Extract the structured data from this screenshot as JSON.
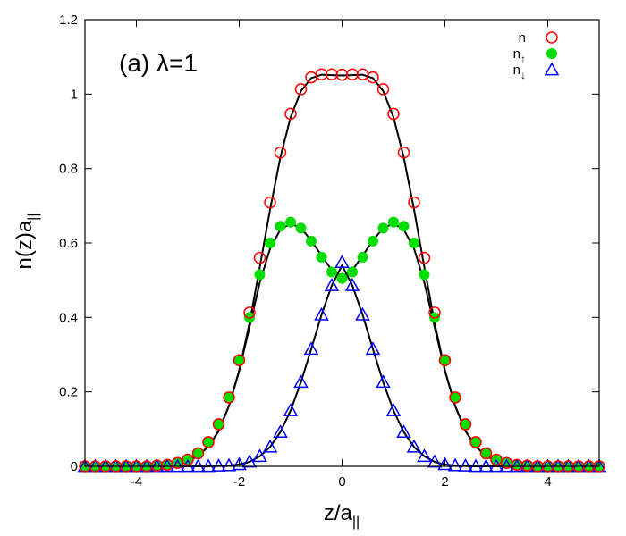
{
  "chart_data": {
    "type": "scatter",
    "panel_label": "(a) λ=1",
    "xlabel_base": "z/a",
    "xlabel_sub": "||",
    "ylabel_base": "n(z)a",
    "ylabel_sub": "||",
    "xlim": [
      -5,
      5
    ],
    "ylim": [
      0,
      1.2
    ],
    "x_ticks": [
      -4,
      -2,
      0,
      2,
      4
    ],
    "x_tick_labels": [
      "-4",
      "-2",
      "0",
      "2",
      "4"
    ],
    "y_ticks": [
      0,
      0.2,
      0.4,
      0.6,
      0.8,
      1,
      1.2
    ],
    "y_tick_labels": [
      "0",
      "0.2",
      "0.4",
      "0.6",
      "0.8",
      "1",
      "1.2"
    ],
    "legend_position": "top-right",
    "colors": {
      "n": "#ff0000",
      "n_up": "#00dd00",
      "n_down": "#0000ff",
      "fit": "#000000"
    },
    "series": [
      {
        "name": "n",
        "legend_base": "n",
        "legend_sub": "",
        "marker": "open-circle",
        "color": "#ff0000",
        "x": [
          -5.0,
          -4.8,
          -4.6,
          -4.4,
          -4.2,
          -4.0,
          -3.8,
          -3.6,
          -3.4,
          -3.2,
          -3.0,
          -2.8,
          -2.6,
          -2.4,
          -2.2,
          -2.0,
          -1.8,
          -1.6,
          -1.4,
          -1.2,
          -1.0,
          -0.8,
          -0.6,
          -0.4,
          -0.2,
          0.0,
          0.2,
          0.4,
          0.6,
          0.8,
          1.0,
          1.2,
          1.4,
          1.6,
          1.8,
          2.0,
          2.2,
          2.4,
          2.6,
          2.8,
          3.0,
          3.2,
          3.4,
          3.6,
          3.8,
          4.0,
          4.2,
          4.4,
          4.6,
          4.8,
          5.0
        ],
        "y": [
          0.0,
          0.0,
          0.0,
          0.0,
          0.0,
          0.0,
          0.0,
          0.002,
          0.004,
          0.009,
          0.018,
          0.035,
          0.065,
          0.113,
          0.185,
          0.285,
          0.413,
          0.56,
          0.709,
          0.843,
          0.947,
          1.013,
          1.045,
          1.053,
          1.053,
          1.052,
          1.053,
          1.053,
          1.045,
          1.013,
          0.947,
          0.843,
          0.709,
          0.56,
          0.413,
          0.285,
          0.185,
          0.113,
          0.065,
          0.035,
          0.018,
          0.009,
          0.004,
          0.002,
          0.0,
          0.0,
          0.0,
          0.0,
          0.0,
          0.0,
          0.0
        ]
      },
      {
        "name": "n↑",
        "legend_base": "n",
        "legend_sub": "↑",
        "marker": "filled-circle",
        "color": "#00dd00",
        "x": [
          -5.0,
          -4.8,
          -4.6,
          -4.4,
          -4.2,
          -4.0,
          -3.8,
          -3.6,
          -3.4,
          -3.2,
          -3.0,
          -2.8,
          -2.6,
          -2.4,
          -2.2,
          -2.0,
          -1.8,
          -1.6,
          -1.4,
          -1.2,
          -1.0,
          -0.8,
          -0.6,
          -0.4,
          -0.2,
          0.0,
          0.2,
          0.4,
          0.6,
          0.8,
          1.0,
          1.2,
          1.4,
          1.6,
          1.8,
          2.0,
          2.2,
          2.4,
          2.6,
          2.8,
          3.0,
          3.2,
          3.4,
          3.6,
          3.8,
          4.0,
          4.2,
          4.4,
          4.6,
          4.8,
          5.0
        ],
        "y": [
          0.0,
          0.0,
          0.0,
          0.0,
          0.0,
          0.0,
          0.0,
          0.002,
          0.004,
          0.009,
          0.018,
          0.035,
          0.065,
          0.113,
          0.185,
          0.283,
          0.4,
          0.515,
          0.6,
          0.645,
          0.656,
          0.64,
          0.605,
          0.562,
          0.522,
          0.505,
          0.522,
          0.562,
          0.605,
          0.64,
          0.656,
          0.645,
          0.6,
          0.515,
          0.4,
          0.283,
          0.185,
          0.113,
          0.065,
          0.035,
          0.018,
          0.009,
          0.004,
          0.002,
          0.0,
          0.0,
          0.0,
          0.0,
          0.0,
          0.0,
          0.0
        ]
      },
      {
        "name": "n↓",
        "legend_base": "n",
        "legend_sub": "↓",
        "marker": "open-triangle",
        "color": "#0000ff",
        "x": [
          -5.0,
          -4.8,
          -4.6,
          -4.4,
          -4.2,
          -4.0,
          -3.8,
          -3.6,
          -3.4,
          -3.2,
          -3.0,
          -2.8,
          -2.6,
          -2.4,
          -2.2,
          -2.0,
          -1.8,
          -1.6,
          -1.4,
          -1.2,
          -1.0,
          -0.8,
          -0.6,
          -0.4,
          -0.2,
          0.0,
          0.2,
          0.4,
          0.6,
          0.8,
          1.0,
          1.2,
          1.4,
          1.6,
          1.8,
          2.0,
          2.2,
          2.4,
          2.6,
          2.8,
          3.0,
          3.2,
          3.4,
          3.6,
          3.8,
          4.0,
          4.2,
          4.4,
          4.6,
          4.8,
          5.0
        ],
        "y": [
          0.0,
          0.0,
          0.0,
          0.0,
          0.0,
          0.0,
          0.0,
          0.0,
          0.0,
          0.0,
          0.0,
          0.0,
          0.0,
          0.001,
          0.002,
          0.005,
          0.012,
          0.027,
          0.052,
          0.092,
          0.15,
          0.226,
          0.315,
          0.407,
          0.486,
          0.548,
          0.486,
          0.407,
          0.315,
          0.226,
          0.15,
          0.092,
          0.052,
          0.027,
          0.012,
          0.005,
          0.002,
          0.001,
          0.0,
          0.0,
          0.0,
          0.0,
          0.0,
          0.0,
          0.0,
          0.0,
          0.0,
          0.0,
          0.0,
          0.0,
          0.0
        ]
      }
    ],
    "fit_curves": [
      {
        "color": "#000000",
        "x": [
          -5.0,
          -4.8,
          -4.6,
          -4.4,
          -4.2,
          -4.0,
          -3.8,
          -3.6,
          -3.4,
          -3.2,
          -3.0,
          -2.8,
          -2.6,
          -2.4,
          -2.2,
          -2.0,
          -1.8,
          -1.6,
          -1.4,
          -1.2,
          -1.0,
          -0.8,
          -0.6,
          -0.4,
          -0.2,
          0.0,
          0.2,
          0.4,
          0.6,
          0.8,
          1.0,
          1.2,
          1.4,
          1.6,
          1.8,
          2.0,
          2.2,
          2.4,
          2.6,
          2.8,
          3.0,
          3.2,
          3.4,
          3.6,
          3.8,
          4.0,
          4.2,
          4.4,
          4.6,
          4.8,
          5.0
        ],
        "y": [
          0.0,
          0.0,
          0.0,
          0.0,
          0.0,
          0.0,
          0.0,
          0.001,
          0.003,
          0.007,
          0.014,
          0.028,
          0.053,
          0.095,
          0.162,
          0.258,
          0.385,
          0.535,
          0.69,
          0.83,
          0.938,
          1.008,
          1.043,
          1.052,
          1.051,
          1.05,
          1.051,
          1.052,
          1.043,
          1.008,
          0.938,
          0.83,
          0.69,
          0.535,
          0.385,
          0.258,
          0.162,
          0.095,
          0.053,
          0.028,
          0.014,
          0.007,
          0.003,
          0.001,
          0.0,
          0.0,
          0.0,
          0.0,
          0.0,
          0.0,
          0.0
        ]
      },
      {
        "color": "#000000",
        "x": [
          -5.0,
          -4.8,
          -4.6,
          -4.4,
          -4.2,
          -4.0,
          -3.8,
          -3.6,
          -3.4,
          -3.2,
          -3.0,
          -2.8,
          -2.6,
          -2.4,
          -2.2,
          -2.0,
          -1.8,
          -1.6,
          -1.4,
          -1.2,
          -1.0,
          -0.8,
          -0.6,
          -0.4,
          -0.2,
          0.0,
          0.2,
          0.4,
          0.6,
          0.8,
          1.0,
          1.2,
          1.4,
          1.6,
          1.8,
          2.0,
          2.2,
          2.4,
          2.6,
          2.8,
          3.0,
          3.2,
          3.4,
          3.6,
          3.8,
          4.0,
          4.2,
          4.4,
          4.6,
          4.8,
          5.0
        ],
        "y": [
          0.0,
          0.0,
          0.0,
          0.0,
          0.0,
          0.0,
          0.0,
          0.001,
          0.003,
          0.007,
          0.014,
          0.028,
          0.053,
          0.095,
          0.162,
          0.257,
          0.374,
          0.494,
          0.585,
          0.636,
          0.652,
          0.64,
          0.607,
          0.566,
          0.527,
          0.51,
          0.527,
          0.566,
          0.607,
          0.64,
          0.652,
          0.636,
          0.585,
          0.494,
          0.374,
          0.257,
          0.162,
          0.095,
          0.053,
          0.028,
          0.014,
          0.007,
          0.003,
          0.001,
          0.0,
          0.0,
          0.0,
          0.0,
          0.0,
          0.0,
          0.0
        ]
      },
      {
        "color": "#000000",
        "x": [
          -5.0,
          -4.8,
          -4.6,
          -4.4,
          -4.2,
          -4.0,
          -3.8,
          -3.6,
          -3.4,
          -3.2,
          -3.0,
          -2.8,
          -2.6,
          -2.4,
          -2.2,
          -2.0,
          -1.8,
          -1.6,
          -1.4,
          -1.2,
          -1.0,
          -0.8,
          -0.6,
          -0.4,
          -0.2,
          0.0,
          0.2,
          0.4,
          0.6,
          0.8,
          1.0,
          1.2,
          1.4,
          1.6,
          1.8,
          2.0,
          2.2,
          2.4,
          2.6,
          2.8,
          3.0,
          3.2,
          3.4,
          3.6,
          3.8,
          4.0,
          4.2,
          4.4,
          4.6,
          4.8,
          5.0
        ],
        "y": [
          0.0,
          0.0,
          0.0,
          0.0,
          0.0,
          0.0,
          0.0,
          0.0,
          0.0,
          0.0,
          0.0,
          0.0,
          0.0,
          0.001,
          0.002,
          0.005,
          0.012,
          0.027,
          0.052,
          0.092,
          0.15,
          0.226,
          0.315,
          0.407,
          0.486,
          0.54,
          0.486,
          0.407,
          0.315,
          0.226,
          0.15,
          0.092,
          0.052,
          0.027,
          0.012,
          0.005,
          0.002,
          0.001,
          0.0,
          0.0,
          0.0,
          0.0,
          0.0,
          0.0,
          0.0,
          0.0,
          0.0,
          0.0,
          0.0,
          0.0,
          0.0
        ]
      }
    ]
  }
}
